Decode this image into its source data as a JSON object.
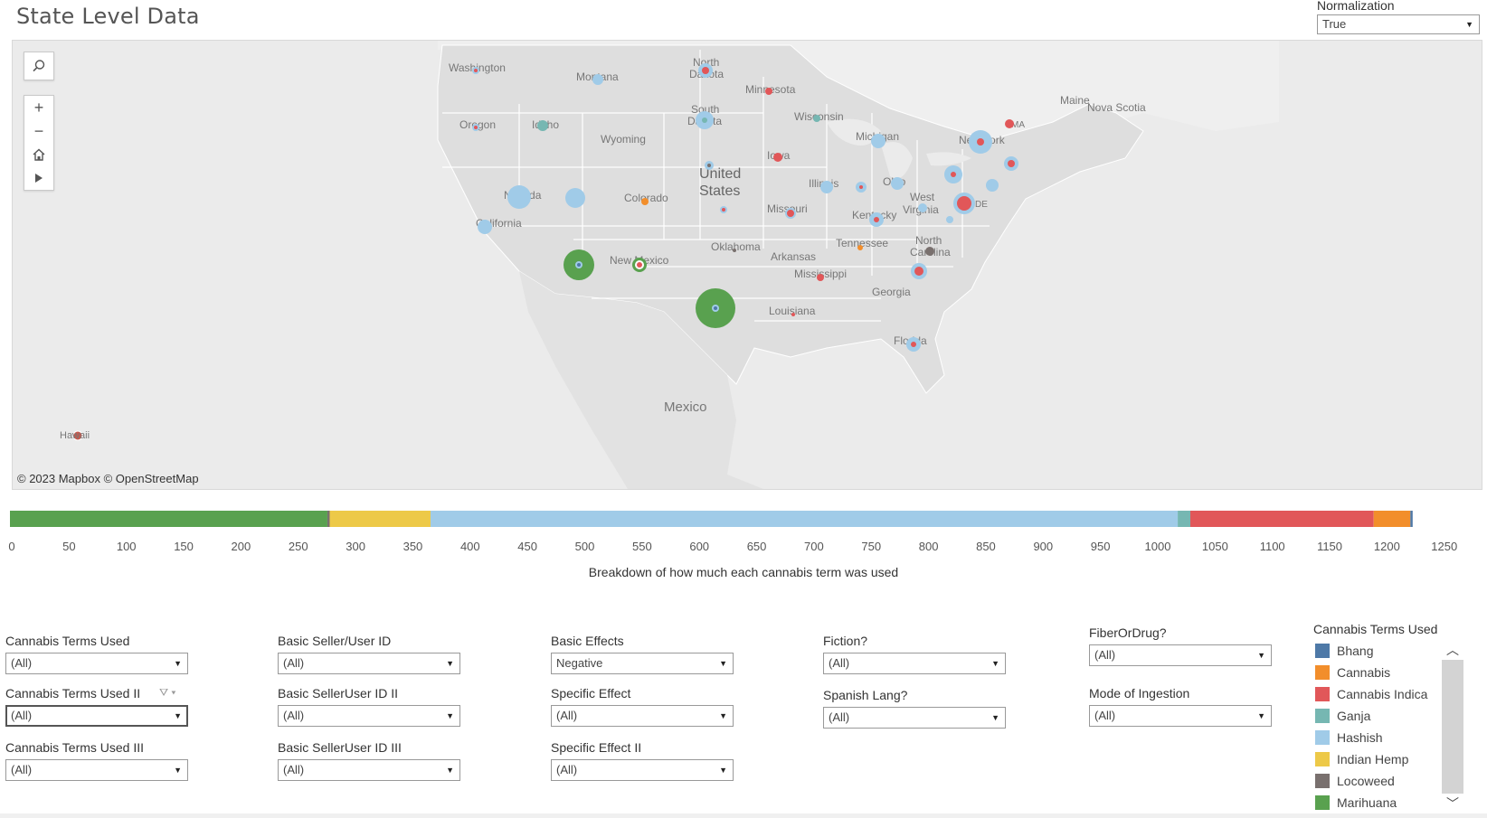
{
  "page": {
    "title": "State Level Data",
    "normalization_label": "Normalization",
    "normalization_value": "True"
  },
  "map": {
    "attribution": "© 2023 Mapbox © OpenStreetMap",
    "place_labels": [
      "Washington",
      "Montana",
      "North Dakota",
      "Minnesota",
      "Oregon",
      "Idaho",
      "Wyoming",
      "South Dakota",
      "Wisconsin",
      "Michigan",
      "New York",
      "Maine",
      "Nova Scotia",
      "Iowa",
      "Nevada",
      "California",
      "Colorado",
      "United",
      "States",
      "Illinois",
      "Ohio",
      "West Virginia",
      "Missouri",
      "Kentucky",
      "Oklahoma",
      "Arkansas",
      "Tennessee",
      "North Carolina",
      "New Mexico",
      "Mississippi",
      "Louisiana",
      "Georgia",
      "Florida",
      "Mexico",
      "Hawaii",
      "MA",
      "DE"
    ],
    "controls": {
      "search_icon": "search-icon",
      "zoom_in_icon": "plus-icon",
      "zoom_out_icon": "minus-icon",
      "home_icon": "home-icon",
      "pan_icon": "play-icon"
    }
  },
  "breakdown": {
    "axis_ticks": [
      "0",
      "50",
      "100",
      "150",
      "200",
      "250",
      "300",
      "350",
      "400",
      "450",
      "500",
      "550",
      "600",
      "650",
      "700",
      "750",
      "800",
      "850",
      "900",
      "950",
      "1000",
      "1050",
      "1100",
      "1150",
      "1200",
      "1250"
    ],
    "axis_title": "Breakdown of how much each cannabis term was used",
    "segments": [
      {
        "term": "Marihuana",
        "value": 277,
        "color": "#59a14f"
      },
      {
        "term": "Locoweed",
        "value": 2,
        "color": "#79706e"
      },
      {
        "term": "Indian Hemp",
        "value": 88,
        "color": "#edc948"
      },
      {
        "term": "Hashish",
        "value": 652,
        "color": "#a0cbe8"
      },
      {
        "term": "Ganja",
        "value": 11,
        "color": "#76b7b2"
      },
      {
        "term": "Cannabis Indica",
        "value": 160,
        "color": "#e15759"
      },
      {
        "term": "Cannabis",
        "value": 32,
        "color": "#f28e2b"
      },
      {
        "term": "Bhang",
        "value": 2,
        "color": "#4e79a7"
      }
    ],
    "axis_max": 1250
  },
  "filters": {
    "col1": [
      {
        "label": "Cannabis Terms Used",
        "value": "(All)"
      },
      {
        "label": "Cannabis Terms Used II",
        "value": "(All)"
      },
      {
        "label": "Cannabis Terms Used III",
        "value": "(All)"
      }
    ],
    "col2": [
      {
        "label": "Basic Seller/User ID",
        "value": "(All)"
      },
      {
        "label": "Basic SellerUser ID II",
        "value": "(All)"
      },
      {
        "label": "Basic SellerUser ID III",
        "value": "(All)"
      }
    ],
    "col3": [
      {
        "label": "Basic Effects",
        "value": "Negative"
      },
      {
        "label": "Specific Effect",
        "value": "(All)"
      },
      {
        "label": "Specific Effect II",
        "value": "(All)"
      }
    ],
    "col4": [
      {
        "label": "Fiction?",
        "value": "(All)"
      },
      {
        "label": "Spanish Lang?",
        "value": "(All)"
      }
    ],
    "col5": [
      {
        "label": "FiberOrDrug?",
        "value": "(All)"
      },
      {
        "label": "Mode of Ingestion",
        "value": "(All)"
      }
    ]
  },
  "legend": {
    "title": "Cannabis Terms Used",
    "items": [
      {
        "label": "Bhang",
        "color": "#4e79a7"
      },
      {
        "label": "Cannabis",
        "color": "#f28e2b"
      },
      {
        "label": "Cannabis Indica",
        "color": "#e15759"
      },
      {
        "label": "Ganja",
        "color": "#76b7b2"
      },
      {
        "label": "Hashish",
        "color": "#a0cbe8"
      },
      {
        "label": "Indian Hemp",
        "color": "#edc948"
      },
      {
        "label": "Locoweed",
        "color": "#79706e"
      },
      {
        "label": "Marihuana",
        "color": "#59a14f"
      }
    ]
  }
}
